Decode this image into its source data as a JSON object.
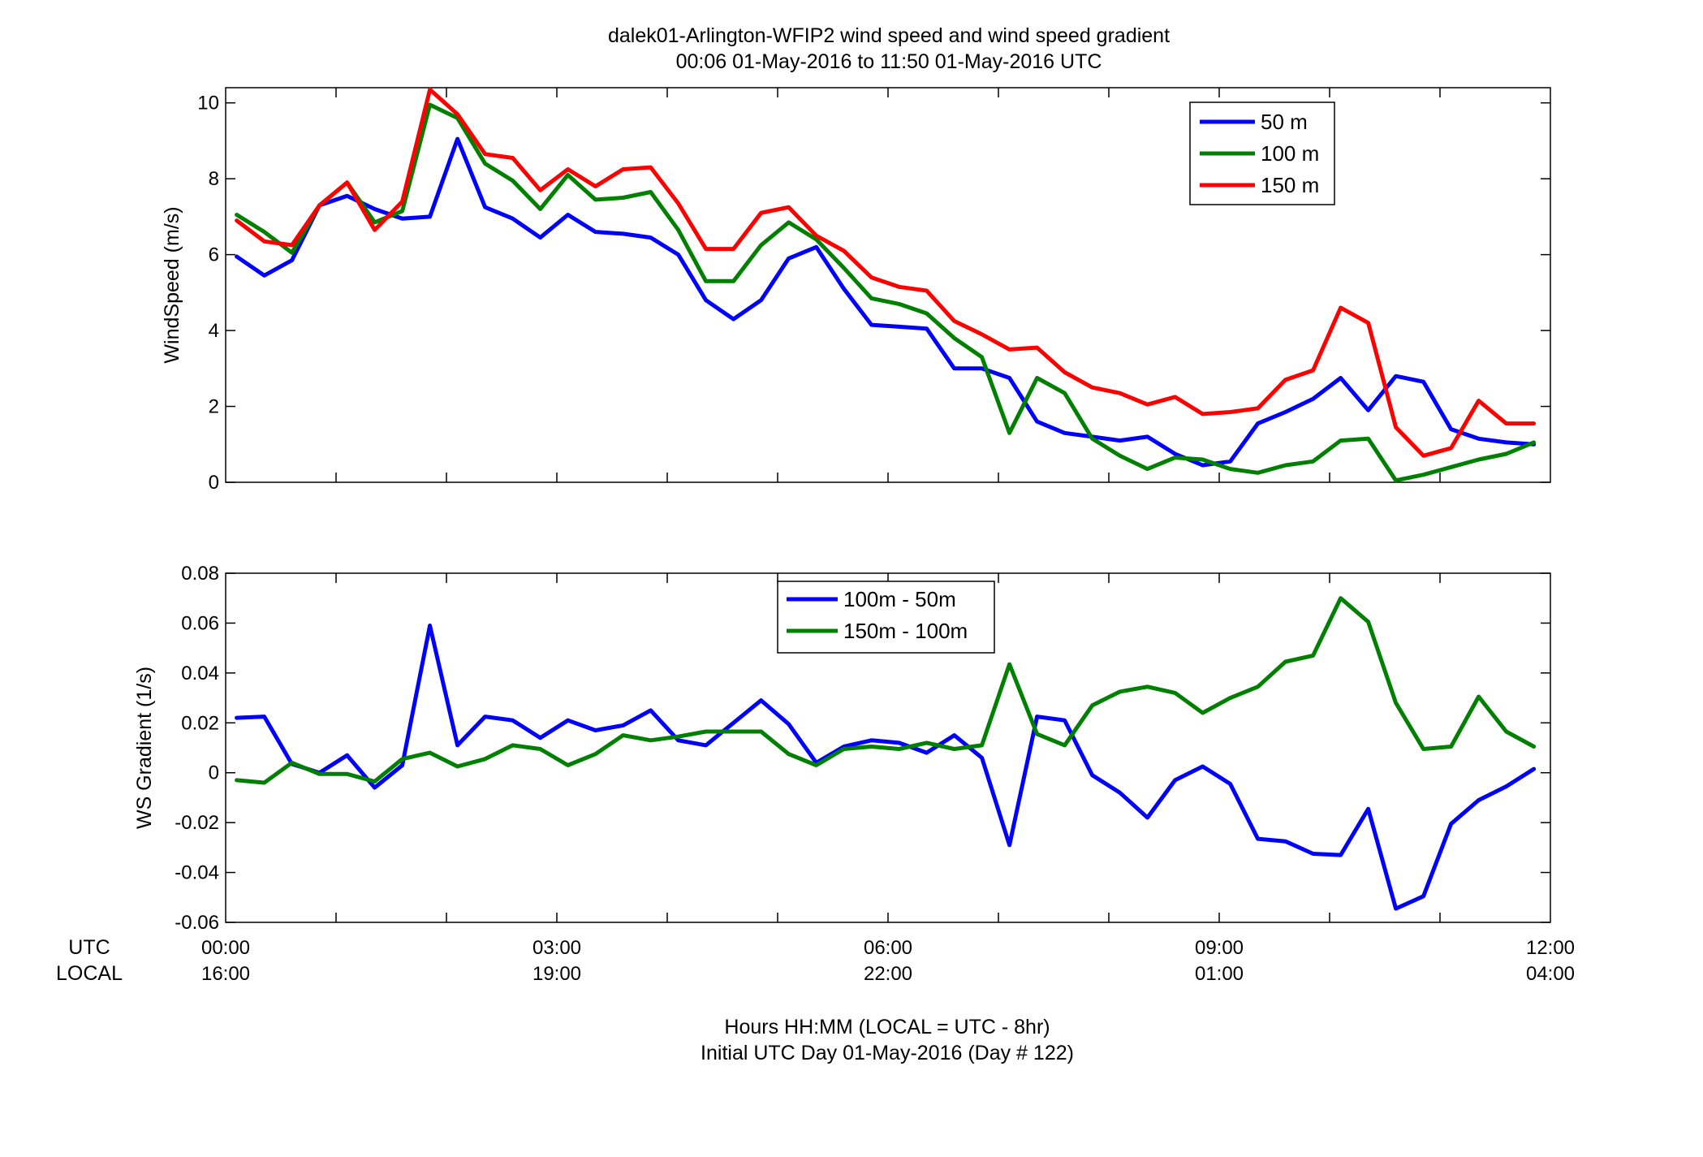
{
  "figure": {
    "title_line1": "dalek01-Arlington-WFIP2  wind speed and wind speed gradient",
    "title_line2": "00:06 01-May-2016 to 11:50 01-May-2016  UTC",
    "xlabel_line1": "Hours HH:MM  (LOCAL = UTC - 8hr)",
    "xlabel_line2": "Initial UTC Day 01-May-2016 (Day # 122)",
    "row_label_utc": "UTC",
    "row_label_local": "LOCAL",
    "x_ticks_utc": [
      "00:00",
      "03:00",
      "06:00",
      "09:00",
      "12:00"
    ],
    "x_ticks_local": [
      "16:00",
      "19:00",
      "22:00",
      "01:00",
      "04:00"
    ]
  },
  "colors": {
    "blue": "#0000ff",
    "green": "#008000",
    "red": "#ff0000"
  },
  "chart_data": [
    {
      "type": "line",
      "ylabel": "WindSpeed (m/s)",
      "ylim": [
        0,
        10.4
      ],
      "xlim": [
        0,
        12
      ],
      "yticks": [
        0,
        2,
        4,
        6,
        8,
        10
      ],
      "ytick_labels": [
        "0",
        "2",
        "4",
        "6",
        "8",
        "10"
      ],
      "legend_position": "top-right",
      "x": [
        0.1,
        0.35,
        0.6,
        0.85,
        1.1,
        1.35,
        1.6,
        1.85,
        2.1,
        2.35,
        2.6,
        2.85,
        3.1,
        3.35,
        3.6,
        3.85,
        4.1,
        4.35,
        4.6,
        4.85,
        5.1,
        5.35,
        5.6,
        5.85,
        6.1,
        6.35,
        6.6,
        6.85,
        7.1,
        7.35,
        7.6,
        7.85,
        8.1,
        8.35,
        8.6,
        8.85,
        9.1,
        9.35,
        9.6,
        9.85,
        10.1,
        10.35,
        10.6,
        10.85,
        11.1,
        11.35,
        11.6,
        11.85
      ],
      "series": [
        {
          "name": "50 m",
          "color": "#0000ff",
          "values": [
            5.95,
            5.45,
            5.85,
            7.3,
            7.55,
            7.2,
            6.95,
            7.0,
            9.05,
            7.25,
            6.95,
            6.45,
            7.05,
            6.6,
            6.55,
            6.45,
            6.0,
            4.8,
            4.3,
            4.8,
            5.9,
            6.2,
            5.1,
            4.15,
            4.1,
            4.05,
            3.0,
            3.0,
            2.75,
            1.6,
            1.3,
            1.2,
            1.1,
            1.2,
            0.75,
            0.45,
            0.55,
            1.55,
            1.85,
            2.2,
            2.75,
            1.9,
            2.8,
            2.65,
            1.4,
            1.15,
            1.05,
            1.0
          ]
        },
        {
          "name": "100 m",
          "color": "#008000",
          "values": [
            7.05,
            6.6,
            6.05,
            7.3,
            7.9,
            6.85,
            7.15,
            9.95,
            9.6,
            8.4,
            7.95,
            7.2,
            8.1,
            7.45,
            7.5,
            7.65,
            6.65,
            5.3,
            5.3,
            6.25,
            6.85,
            6.4,
            5.65,
            4.85,
            4.7,
            4.45,
            3.8,
            3.3,
            1.3,
            2.75,
            2.35,
            1.15,
            0.7,
            0.35,
            0.65,
            0.6,
            0.35,
            0.25,
            0.45,
            0.55,
            1.1,
            1.15,
            0.05,
            0.2,
            0.4,
            0.6,
            0.75,
            1.05
          ]
        },
        {
          "name": "150 m",
          "color": "#ff0000",
          "values": [
            6.9,
            6.35,
            6.25,
            7.3,
            7.9,
            6.65,
            7.4,
            10.35,
            9.7,
            8.65,
            8.55,
            7.7,
            8.25,
            7.8,
            8.25,
            8.3,
            7.35,
            6.15,
            6.15,
            7.1,
            7.25,
            6.5,
            6.1,
            5.4,
            5.15,
            5.05,
            4.25,
            3.9,
            3.5,
            3.55,
            2.9,
            2.5,
            2.35,
            2.05,
            2.25,
            1.8,
            1.85,
            1.95,
            2.7,
            2.95,
            4.6,
            4.2,
            1.45,
            0.7,
            0.9,
            2.15,
            1.55,
            1.55
          ]
        }
      ]
    },
    {
      "type": "line",
      "ylabel": "WS Gradient (1/s)",
      "ylim": [
        -0.06,
        0.08
      ],
      "xlim": [
        0,
        12
      ],
      "yticks": [
        -0.06,
        -0.04,
        -0.02,
        0,
        0.02,
        0.04,
        0.06,
        0.08
      ],
      "ytick_labels": [
        "-0.06",
        "-0.04",
        "-0.02",
        "0",
        "0.02",
        "0.04",
        "0.06",
        "0.08"
      ],
      "legend_position": "top-center",
      "x": [
        0.1,
        0.35,
        0.6,
        0.85,
        1.1,
        1.35,
        1.6,
        1.85,
        2.1,
        2.35,
        2.6,
        2.85,
        3.1,
        3.35,
        3.6,
        3.85,
        4.1,
        4.35,
        4.6,
        4.85,
        5.1,
        5.35,
        5.6,
        5.85,
        6.1,
        6.35,
        6.6,
        6.85,
        7.1,
        7.35,
        7.6,
        7.85,
        8.1,
        8.35,
        8.6,
        8.85,
        9.1,
        9.35,
        9.6,
        9.85,
        10.1,
        10.35,
        10.6,
        10.85,
        11.1,
        11.35,
        11.6,
        11.85
      ],
      "series": [
        {
          "name": "100m - 50m",
          "color": "#0000ff",
          "values": [
            0.022,
            0.0225,
            0.0035,
            0.0,
            0.007,
            -0.006,
            0.003,
            0.059,
            0.011,
            0.0225,
            0.021,
            0.014,
            0.021,
            0.017,
            0.019,
            0.025,
            0.013,
            0.011,
            0.02,
            0.029,
            0.0195,
            0.004,
            0.0105,
            0.013,
            0.012,
            0.008,
            0.015,
            0.006,
            -0.029,
            0.0225,
            0.021,
            -0.001,
            -0.008,
            -0.018,
            -0.003,
            0.0025,
            -0.0045,
            -0.0265,
            -0.0275,
            -0.0325,
            -0.033,
            -0.0145,
            -0.0545,
            -0.0495,
            -0.0205,
            -0.011,
            -0.0055,
            0.0015
          ]
        },
        {
          "name": "150m - 100m",
          "color": "#008000",
          "values": [
            -0.003,
            -0.004,
            0.004,
            -0.0005,
            -0.0005,
            -0.0035,
            0.0055,
            0.008,
            0.0025,
            0.0055,
            0.011,
            0.0095,
            0.003,
            0.0075,
            0.015,
            0.013,
            0.0145,
            0.0165,
            0.0165,
            0.0165,
            0.0075,
            0.003,
            0.0095,
            0.0105,
            0.0095,
            0.012,
            0.0095,
            0.011,
            0.0435,
            0.0155,
            0.011,
            0.027,
            0.0325,
            0.0345,
            0.032,
            0.024,
            0.03,
            0.0345,
            0.0445,
            0.047,
            0.07,
            0.0605,
            0.028,
            0.0095,
            0.0105,
            0.0305,
            0.0165,
            0.0105
          ]
        }
      ]
    }
  ]
}
